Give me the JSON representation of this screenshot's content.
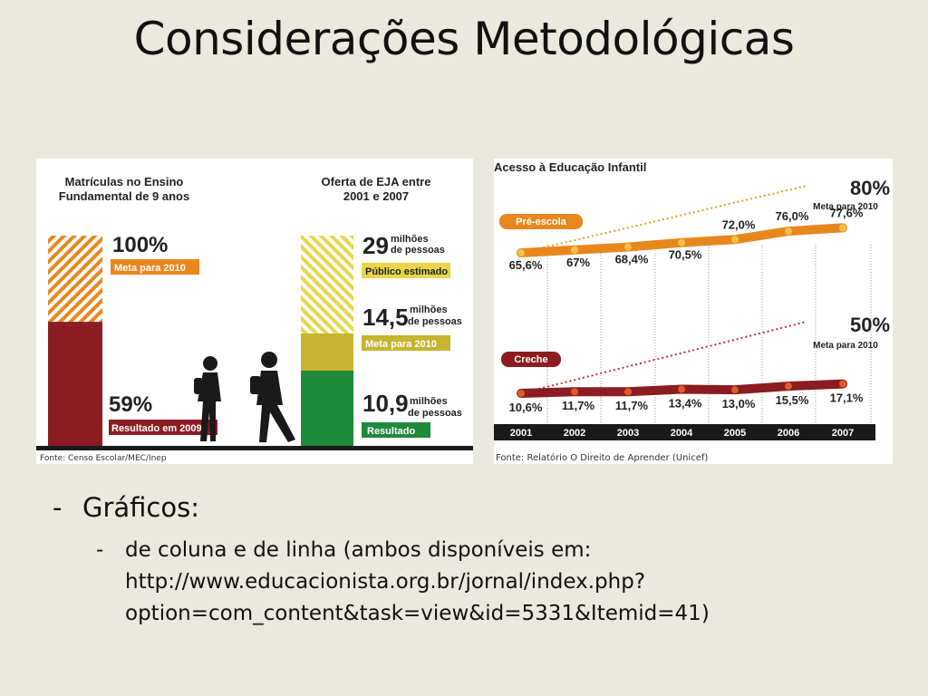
{
  "slide": {
    "title": "Considerações Metodológicas",
    "bullet_main": "Gráficos:",
    "bullet_sub_lines": [
      "de coluna e de linha (ambos disponíveis em:",
      "http://www.educacionista.org.br/jornal/index.php?",
      "option=com_content&task=view&id=5331&Itemid=41)"
    ]
  },
  "colors": {
    "background": "#ebe8df",
    "dark_red": "#8b1c22",
    "orange": "#e8871e",
    "olive": "#c6b52e",
    "green": "#1f8a3c",
    "yellow_hatch": "#e8d64a"
  },
  "chart_data": [
    {
      "type": "bar",
      "title": "Matrículas no Ensino Fundamental de 9 anos",
      "segments": [
        {
          "value": 59,
          "unit": "%",
          "label": "Resultado em 2009",
          "value_text": "59%"
        },
        {
          "value": 100,
          "unit": "%",
          "label": "Meta para 2010",
          "value_text": "100%"
        }
      ],
      "ylim": [
        0,
        100
      ],
      "source": "Fonte: Censo Escolar/MEC/Inep"
    },
    {
      "type": "bar",
      "title": "Oferta de EJA entre 2001 e 2007",
      "segments": [
        {
          "value": 10.9,
          "value_text": "10,9",
          "unit": "milhões de pessoas",
          "label": "Resultado"
        },
        {
          "value": 14.5,
          "value_text": "14,5",
          "unit": "milhões de pessoas",
          "label": "Meta para 2010"
        },
        {
          "value": 29,
          "value_text": "29",
          "unit": "milhões de pessoas",
          "label": "Público estimado"
        }
      ],
      "ylim": [
        0,
        29
      ]
    },
    {
      "type": "line",
      "title": "Acesso à Educação Infantil",
      "x": [
        "2001",
        "2002",
        "2003",
        "2004",
        "2005",
        "2006",
        "2007"
      ],
      "ylim": [
        0,
        100
      ],
      "series": [
        {
          "name": "Pré-escola",
          "values": [
            65.6,
            67,
            68.4,
            70.5,
            72.0,
            76.0,
            77.6
          ],
          "labels": [
            "65,6%",
            "67%",
            "68,4%",
            "70,5%",
            "72,0%",
            "76,0%",
            "77,6%"
          ],
          "target_value": 80,
          "target_text": "80%",
          "target_label": "Meta para 2010"
        },
        {
          "name": "Creche",
          "values": [
            10.6,
            11.7,
            11.7,
            13.4,
            13.0,
            15.5,
            17.1
          ],
          "labels": [
            "10,6%",
            "11,7%",
            "11,7%",
            "13,4%",
            "13,0%",
            "15,5%",
            "17,1%"
          ],
          "target_value": 50,
          "target_text": "50%",
          "target_label": "Meta para 2010"
        }
      ],
      "source": "Fonte: Relatório O Direito de Aprender (Unicef)"
    }
  ]
}
